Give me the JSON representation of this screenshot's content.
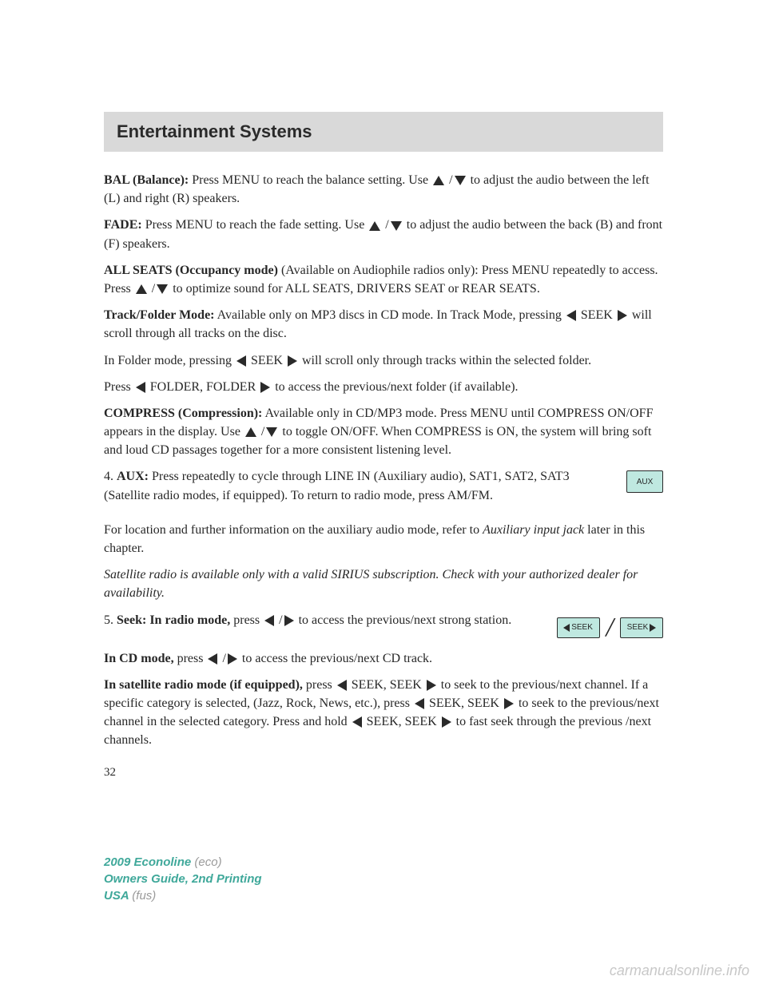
{
  "header": {
    "title": "Entertainment Systems"
  },
  "bal": {
    "label": "BAL (Balance):",
    "t1": " Press MENU to reach the balance setting. Use ",
    "t2": " to adjust the audio between the left (L) and right (R) speakers."
  },
  "fade": {
    "label": "FADE:",
    "t1": " Press MENU to reach the fade setting. Use ",
    "t2": " to adjust the audio between the back (B) and front (F) speakers."
  },
  "allseats": {
    "label": "ALL SEATS (Occupancy mode)",
    "t1": " (Available on Audiophile radios only): Press MENU repeatedly to access. Press ",
    "t2": " to optimize sound for ALL SEATS, DRIVERS SEAT or REAR SEATS."
  },
  "track": {
    "label": "Track/Folder Mode:",
    "t1": " Available only on MP3 discs in CD mode. In Track Mode, pressing ",
    "seek": " SEEK ",
    "t2": " will scroll through all tracks on the disc.",
    "t3": "In Folder mode, pressing ",
    "t4": " will scroll only through tracks within the selected folder.",
    "t5": "Press ",
    "folder": " FOLDER, FOLDER ",
    "t6": " to access the previous/next folder (if available)."
  },
  "compress": {
    "label": "COMPRESS (Compression):",
    "t1": " Available only in CD/MP3 mode. Press MENU until COMPRESS ON/OFF appears in the display. Use ",
    "t2": " to toggle ON/OFF. When COMPRESS is ON, the system will bring soft and loud CD passages together for a more consistent listening level."
  },
  "aux": {
    "num": "4. ",
    "label": "AUX:",
    "t1": " Press repeatedly to cycle through LINE IN (Auxiliary audio), SAT1, SAT2, SAT3 (Satellite radio modes, if equipped). To return to radio mode, press AM/FM.",
    "t2": "For location and further information on the auxiliary audio mode, refer to ",
    "ital": "Auxiliary input jack",
    "t3": " later in this chapter.",
    "note": "Satellite radio is available only with a valid SIRIUS subscription. Check with your authorized dealer for availability.",
    "btn": "AUX"
  },
  "seek": {
    "num": "5. ",
    "label": "Seek: In radio mode,",
    "t1": " press ",
    "t2": " to access the previous/next strong station.",
    "btnL": "SEEK",
    "btnR": "SEEK"
  },
  "cd": {
    "label": "In CD mode,",
    "t1": " press ",
    "t2": " to access the previous/next CD track."
  },
  "sat": {
    "label": "In satellite radio mode (if equipped),",
    "t1": " press ",
    "seek1": " SEEK, SEEK ",
    "t2": " to seek to the previous/next channel. If a specific category is selected, (Jazz, Rock, News, etc.), press ",
    "t3": " to seek to the previous/next channel in the selected category. Press and hold ",
    "t4": " SEEK, SEEK ",
    "t5": " to fast seek through the previous /next channels."
  },
  "pageNum": "32",
  "footer": {
    "l1a": "2009 Econoline ",
    "l1b": "(eco)",
    "l2": "Owners Guide, 2nd Printing",
    "l3a": "USA ",
    "l3b": "(fus)"
  },
  "watermark": "carmanualsonline.info"
}
